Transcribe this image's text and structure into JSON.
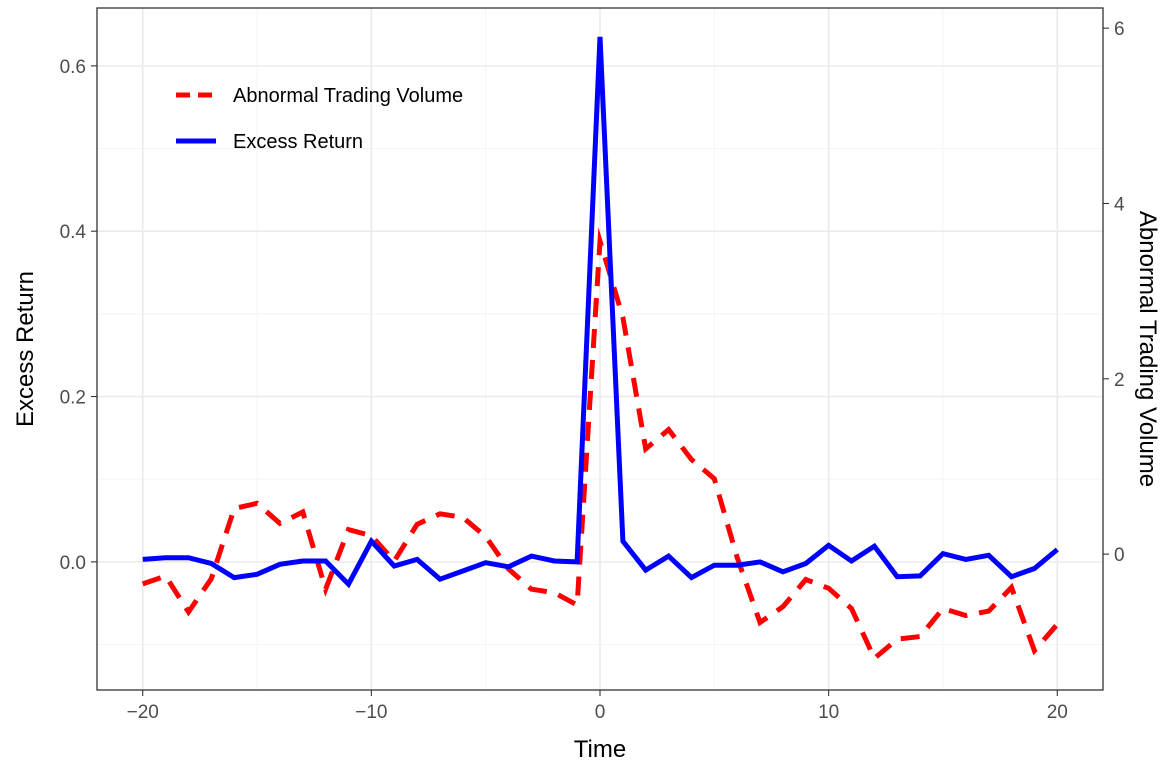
{
  "chart_data": {
    "type": "line",
    "title": "",
    "xlabel": "Time",
    "ylabel": "Excess Return",
    "ylabel_right": "Abnormal Trading Volume",
    "xlim": [
      -22,
      22
    ],
    "ylim": [
      -0.155,
      0.67
    ],
    "y2lim": [
      -1.55,
      6.23
    ],
    "x_ticks": [
      -20,
      -10,
      0,
      10,
      20
    ],
    "x_tick_labels": [
      "−20",
      "−10",
      "0",
      "10",
      "20"
    ],
    "y_ticks": [
      0.0,
      0.2,
      0.4,
      0.6
    ],
    "y_tick_labels": [
      "0.0",
      "0.2",
      "0.4",
      "0.6"
    ],
    "y2_ticks": [
      0,
      2,
      4,
      6
    ],
    "y2_tick_labels": [
      "0",
      "2",
      "4",
      "6"
    ],
    "grid": true,
    "legend_position": "top-left",
    "x": [
      -20,
      -19,
      -18,
      -17,
      -16,
      -15,
      -14,
      -13,
      -12,
      -11,
      -10,
      -9,
      -8,
      -7,
      -6,
      -5,
      -4,
      -3,
      -2,
      -1,
      0,
      1,
      2,
      3,
      4,
      5,
      6,
      7,
      8,
      9,
      10,
      11,
      12,
      13,
      14,
      15,
      16,
      17,
      18,
      19,
      20
    ],
    "series": [
      {
        "name": "Abnormal Trading Volume",
        "axis": "right",
        "color": "#ff0000",
        "dash": "dashed",
        "values": [
          -0.34,
          -0.25,
          -0.66,
          -0.28,
          0.52,
          0.58,
          0.35,
          0.48,
          -0.4,
          0.28,
          0.21,
          -0.08,
          0.34,
          0.46,
          0.42,
          0.2,
          -0.17,
          -0.4,
          -0.44,
          -0.58,
          3.57,
          2.7,
          1.2,
          1.42,
          1.08,
          0.86,
          -0.04,
          -0.78,
          -0.6,
          -0.29,
          -0.39,
          -0.62,
          -1.19,
          -0.97,
          -0.94,
          -0.62,
          -0.7,
          -0.65,
          -0.38,
          -1.1,
          -0.8
        ]
      },
      {
        "name": "Excess Return",
        "axis": "left",
        "color": "#0000ff",
        "dash": "solid",
        "values": [
          0.003,
          0.005,
          0.005,
          -0.002,
          -0.019,
          -0.015,
          -0.003,
          0.001,
          0.001,
          -0.027,
          0.025,
          -0.005,
          0.003,
          -0.021,
          -0.011,
          -0.001,
          -0.006,
          0.007,
          0.001,
          0.0,
          0.635,
          0.025,
          -0.01,
          0.007,
          -0.019,
          -0.004,
          -0.004,
          0.0,
          -0.012,
          -0.002,
          0.02,
          0.001,
          0.019,
          -0.018,
          -0.017,
          0.01,
          0.003,
          0.008,
          -0.018,
          -0.008,
          0.015
        ]
      }
    ]
  }
}
